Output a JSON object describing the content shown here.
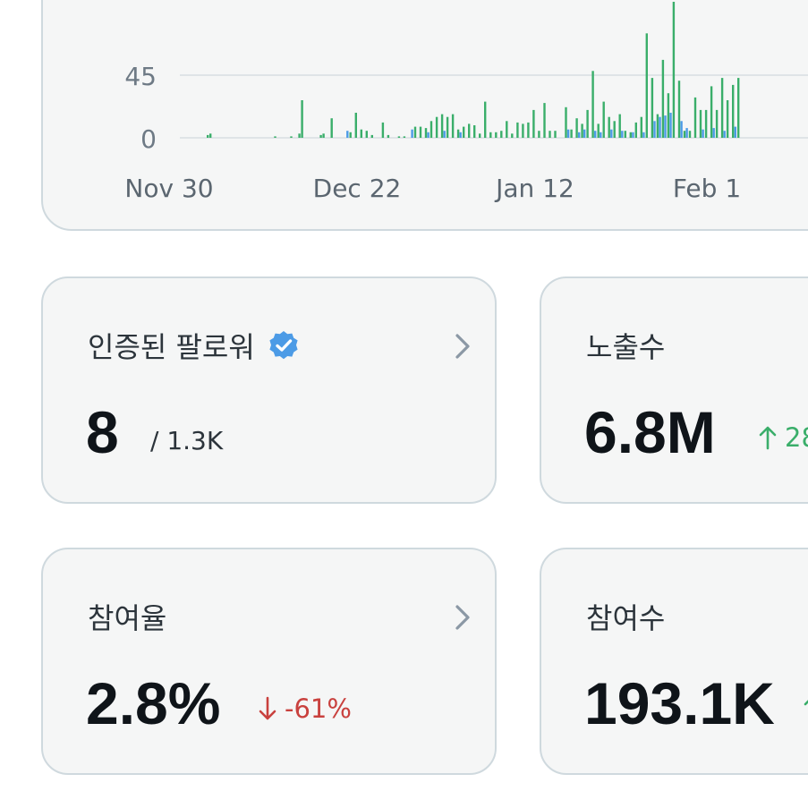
{
  "chart_data": {
    "type": "bar",
    "x_ticks": [
      "Nov 30",
      "Dec 22",
      "Jan 12",
      "Feb 1"
    ],
    "y_ticks": [
      "45",
      "0"
    ],
    "ylim": [
      0,
      100
    ],
    "colors": {
      "green": "#3aae6a",
      "blue": "#4c9be6"
    },
    "series": [
      {
        "color": "#3aae6a",
        "points": [
          [
            0.5,
            2
          ],
          [
            1,
            3
          ],
          [
            13,
            1
          ],
          [
            16,
            1
          ],
          [
            17.5,
            3
          ],
          [
            18,
            27
          ],
          [
            21.5,
            2
          ],
          [
            22,
            3
          ],
          [
            23.5,
            14
          ],
          [
            27,
            4
          ],
          [
            28,
            18
          ],
          [
            29,
            6
          ],
          [
            30,
            5
          ],
          [
            31,
            2
          ],
          [
            33,
            11
          ],
          [
            34,
            2
          ],
          [
            36,
            1
          ],
          [
            37,
            1
          ],
          [
            39,
            8
          ],
          [
            40,
            8
          ],
          [
            41,
            7
          ],
          [
            42,
            12
          ],
          [
            43,
            15
          ],
          [
            44,
            17
          ],
          [
            45,
            15
          ],
          [
            46,
            17
          ],
          [
            47,
            6
          ],
          [
            48,
            8
          ],
          [
            49,
            10
          ],
          [
            50,
            9
          ],
          [
            51,
            3
          ],
          [
            52,
            26
          ],
          [
            53,
            4
          ],
          [
            54,
            4
          ],
          [
            55,
            5
          ],
          [
            56,
            12
          ],
          [
            57,
            3
          ],
          [
            58,
            11
          ],
          [
            59,
            10
          ],
          [
            60,
            11
          ],
          [
            61,
            20
          ],
          [
            62,
            5
          ],
          [
            63,
            25
          ],
          [
            64,
            5
          ],
          [
            65,
            5
          ],
          [
            67,
            22
          ],
          [
            68,
            6
          ],
          [
            69,
            14
          ],
          [
            70,
            10
          ],
          [
            71,
            20
          ],
          [
            72,
            48
          ],
          [
            73,
            10
          ],
          [
            74,
            26
          ],
          [
            75,
            15
          ],
          [
            76,
            12
          ],
          [
            77,
            17
          ],
          [
            78,
            5
          ],
          [
            79,
            4
          ],
          [
            80,
            11
          ],
          [
            81,
            15
          ],
          [
            82,
            75
          ],
          [
            83,
            43
          ],
          [
            84,
            17
          ],
          [
            85,
            56
          ],
          [
            86,
            32
          ],
          [
            87,
            100
          ],
          [
            88,
            41
          ],
          [
            89,
            5
          ],
          [
            90,
            5
          ],
          [
            91,
            29
          ],
          [
            92,
            20
          ],
          [
            93,
            20
          ],
          [
            94,
            37
          ],
          [
            95,
            20
          ],
          [
            96,
            43
          ],
          [
            97,
            27
          ],
          [
            98,
            38
          ],
          [
            99,
            43
          ]
        ]
      },
      {
        "color": "#4c9be6",
        "points": [
          [
            26,
            5
          ],
          [
            38,
            6
          ],
          [
            41,
            4
          ],
          [
            44,
            5
          ],
          [
            47,
            4
          ],
          [
            67,
            6
          ],
          [
            69,
            4
          ],
          [
            70,
            6
          ],
          [
            72,
            5
          ],
          [
            73,
            4
          ],
          [
            75,
            6
          ],
          [
            77,
            5
          ],
          [
            79,
            4
          ],
          [
            81,
            4
          ],
          [
            83,
            12
          ],
          [
            84,
            15
          ],
          [
            85,
            16
          ],
          [
            86,
            18
          ],
          [
            88,
            12
          ],
          [
            89,
            7
          ],
          [
            92,
            6
          ],
          [
            94,
            7
          ],
          [
            96,
            5
          ],
          [
            98,
            8
          ]
        ]
      }
    ]
  },
  "cards": {
    "followers": {
      "title": "인증된 팔로워",
      "value": "8",
      "sub": "/ 1.3K"
    },
    "impressions": {
      "title": "노출수",
      "value": "6.8M",
      "change": "28",
      "change_direction": "up",
      "change_color": "#3aae6a"
    },
    "engagement_rate": {
      "title": "참여율",
      "value": "2.8%",
      "change": "-61%",
      "change_direction": "down",
      "change_color": "#c9413e"
    },
    "engagements": {
      "title": "참여수",
      "value": "193.1K",
      "change": "",
      "change_direction": "up",
      "change_color": "#3aae6a"
    }
  },
  "icons": {
    "verified": "verified-badge-icon",
    "chevron": "chevron-right-icon",
    "arrow_up": "arrow-up-icon",
    "arrow_down": "arrow-down-icon"
  }
}
